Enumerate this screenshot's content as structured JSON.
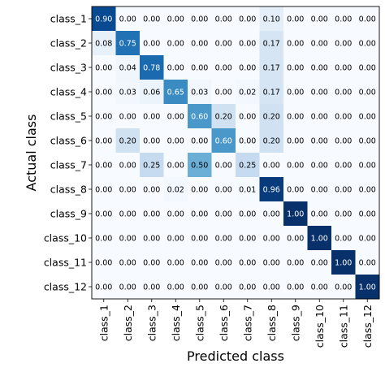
{
  "chart_data": {
    "type": "heatmap",
    "title": "",
    "xlabel": "Predicted class",
    "ylabel": "Actual class",
    "colormap": "Blues",
    "value_range": [
      0,
      1
    ],
    "grid": false,
    "legend": "none",
    "x_categories": [
      "class_1",
      "class_2",
      "class_3",
      "class_4",
      "class_5",
      "class_6",
      "class_7",
      "class_8",
      "class_9",
      "class_10",
      "class_11",
      "class_12"
    ],
    "y_categories": [
      "class_1",
      "class_2",
      "class_3",
      "class_4",
      "class_5",
      "class_6",
      "class_7",
      "class_8",
      "class_9",
      "class_10",
      "class_11",
      "class_12"
    ],
    "values": [
      [
        0.9,
        0.0,
        0.0,
        0.0,
        0.0,
        0.0,
        0.0,
        0.1,
        0.0,
        0.0,
        0.0,
        0.0
      ],
      [
        0.08,
        0.75,
        0.0,
        0.0,
        0.0,
        0.0,
        0.0,
        0.17,
        0.0,
        0.0,
        0.0,
        0.0
      ],
      [
        0.0,
        0.04,
        0.78,
        0.0,
        0.0,
        0.0,
        0.0,
        0.17,
        0.0,
        0.0,
        0.0,
        0.0
      ],
      [
        0.0,
        0.03,
        0.06,
        0.65,
        0.03,
        0.0,
        0.02,
        0.17,
        0.0,
        0.0,
        0.0,
        0.0
      ],
      [
        0.0,
        0.0,
        0.0,
        0.0,
        0.6,
        0.2,
        0.0,
        0.2,
        0.0,
        0.0,
        0.0,
        0.0
      ],
      [
        0.0,
        0.2,
        0.0,
        0.0,
        0.0,
        0.6,
        0.0,
        0.2,
        0.0,
        0.0,
        0.0,
        0.0
      ],
      [
        0.0,
        0.0,
        0.25,
        0.0,
        0.5,
        0.0,
        0.25,
        0.0,
        0.0,
        0.0,
        0.0,
        0.0
      ],
      [
        0.0,
        0.0,
        0.0,
        0.02,
        0.0,
        0.0,
        0.01,
        0.96,
        0.0,
        0.0,
        0.0,
        0.0
      ],
      [
        0.0,
        0.0,
        0.0,
        0.0,
        0.0,
        0.0,
        0.0,
        0.0,
        1.0,
        0.0,
        0.0,
        0.0
      ],
      [
        0.0,
        0.0,
        0.0,
        0.0,
        0.0,
        0.0,
        0.0,
        0.0,
        0.0,
        1.0,
        0.0,
        0.0
      ],
      [
        0.0,
        0.0,
        0.0,
        0.0,
        0.0,
        0.0,
        0.0,
        0.0,
        0.0,
        0.0,
        1.0,
        0.0
      ],
      [
        0.0,
        0.0,
        0.0,
        0.0,
        0.0,
        0.0,
        0.0,
        0.0,
        0.0,
        0.0,
        0.0,
        1.0
      ]
    ]
  }
}
